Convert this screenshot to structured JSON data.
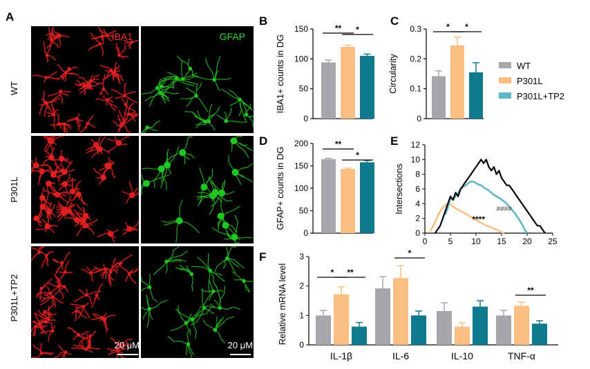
{
  "colors": {
    "wt": "#a7a6ab",
    "p301l": "#fbbf86",
    "tp2": "#0f7a8d",
    "tp2_line": "#5fb7c7",
    "red": "#e02020",
    "green": "#22c622",
    "black": "#000000"
  },
  "panels": {
    "A": {
      "label": "A",
      "channels": [
        "IBA1",
        "GFAP"
      ],
      "rows": [
        "WT",
        "P301L",
        "P301L+TP2"
      ],
      "scalebar": [
        "20 μM",
        "20 μM"
      ]
    }
  },
  "legend": [
    "WT",
    "P301L",
    "P301L+TP2"
  ],
  "chart_data": [
    {
      "panel": "B",
      "type": "bar",
      "categories": [
        "WT",
        "P301L",
        "P301L+TP2"
      ],
      "values": [
        94,
        120,
        105
      ],
      "errors": [
        4,
        3,
        3
      ],
      "ylabel": "IBA1+ counts in DG",
      "ylim": [
        0,
        150
      ],
      "yticks": [
        "0",
        "50",
        "100",
        "150"
      ],
      "sig": [
        {
          "text": "**",
          "from": 0,
          "to": 1
        },
        {
          "text": "*",
          "from": 1,
          "to": 2
        }
      ]
    },
    {
      "panel": "C",
      "type": "bar",
      "categories": [
        "WT",
        "P301L",
        "P301L+TP2"
      ],
      "values": [
        0.142,
        0.245,
        0.155
      ],
      "errors": [
        0.018,
        0.028,
        0.032
      ],
      "ylabel": "Circularity",
      "ylim": [
        0,
        0.3
      ],
      "yticks": [
        "0",
        "0.1",
        "0.2",
        "0.3"
      ],
      "sig": [
        {
          "text": "*",
          "from": 0,
          "to": 1
        },
        {
          "text": "*",
          "from": 1,
          "to": 2
        }
      ]
    },
    {
      "panel": "D",
      "type": "bar",
      "categories": [
        "WT",
        "P301L",
        "P301L+TP2"
      ],
      "values": [
        165,
        143,
        158
      ],
      "errors": [
        2,
        2,
        4
      ],
      "ylabel": "GFAP+ counts in DG",
      "ylim": [
        0,
        200
      ],
      "yticks": [
        "0",
        "50",
        "100",
        "150",
        "200"
      ],
      "sig": [
        {
          "text": "**",
          "from": 0,
          "to": 1
        },
        {
          "text": "*",
          "from": 1,
          "to": 2
        }
      ]
    },
    {
      "panel": "E",
      "type": "line",
      "ylabel": "Intersections",
      "xlim": [
        0,
        25
      ],
      "ylim": [
        0,
        12
      ],
      "xticks": [
        "0",
        "5",
        "10",
        "15",
        "20",
        "25"
      ],
      "yticks": [
        "0",
        "2",
        "4",
        "6",
        "8",
        "10",
        "12"
      ],
      "series": [
        {
          "color": "black",
          "x": [
            2,
            2.5,
            3,
            3.5,
            4,
            4.5,
            5,
            5.5,
            6,
            6.5,
            7,
            7.5,
            8,
            8.5,
            9,
            9.5,
            10,
            10.5,
            11,
            11.5,
            12,
            12.5,
            13,
            13.5,
            14,
            14.5,
            15,
            15.5,
            16,
            16.5,
            17,
            17.5,
            18,
            18.5,
            19,
            19.5,
            20,
            20.5,
            21,
            21.5,
            22,
            22.5,
            23,
            23.5
          ],
          "y": [
            0,
            0.5,
            1,
            2,
            3,
            4,
            5,
            4.5,
            5.5,
            5,
            6,
            6.5,
            7,
            7.5,
            8,
            8.5,
            9,
            9.5,
            10,
            9.5,
            10,
            9,
            8.5,
            9,
            8,
            8.5,
            7.5,
            7,
            6.5,
            6.5,
            6,
            5.5,
            5,
            4.5,
            4,
            3.5,
            3,
            2.5,
            2,
            1.5,
            1,
            1,
            0.5,
            0
          ]
        },
        {
          "color": "tp2_line",
          "x": [
            4,
            4.5,
            5,
            5.5,
            6,
            6.5,
            7,
            7.5,
            8,
            8.5,
            9,
            9.5,
            10,
            10.5,
            11,
            11.5,
            12,
            12.5,
            13,
            13.5,
            14,
            14.5,
            15,
            15.5,
            16,
            16.5,
            17,
            17.5,
            18,
            18.5,
            19,
            19.5,
            20
          ],
          "y": [
            2.5,
            3.5,
            4.8,
            4.6,
            5,
            5.5,
            6,
            6.3,
            6.5,
            6.8,
            7,
            7,
            6.8,
            6.6,
            6.5,
            6.2,
            6,
            5.8,
            5.5,
            5.2,
            5,
            4.8,
            4.6,
            4.3,
            4,
            3.6,
            3.2,
            2.8,
            2.3,
            1.8,
            1.2,
            0.5,
            0
          ]
        },
        {
          "color": "p301l",
          "x": [
            1,
            1.5,
            2,
            2.5,
            3,
            3.5,
            4,
            4.5,
            5,
            5.5,
            6,
            6.5,
            7,
            7.5,
            8,
            8.5,
            9,
            9.5,
            10,
            10.5,
            11,
            11.5,
            12,
            12.5,
            13,
            13.5,
            14,
            14.5,
            15,
            15.5
          ],
          "y": [
            0.2,
            0.8,
            1.5,
            2.3,
            3,
            3.5,
            3.8,
            3.9,
            3.9,
            3.6,
            3.4,
            3.2,
            3,
            2.8,
            2.6,
            2.4,
            2.2,
            2,
            1.8,
            1.6,
            1.4,
            1.2,
            1,
            0.9,
            0.8,
            0.6,
            0.5,
            0.3,
            0.1,
            0
          ]
        }
      ],
      "annotations": [
        "****",
        "####"
      ]
    },
    {
      "panel": "F",
      "type": "bar",
      "categories": [
        "IL-1β",
        "IL-6",
        "IL-10",
        "TNF-α"
      ],
      "series": [
        {
          "name": "WT",
          "values": [
            1.0,
            1.92,
            1.15,
            1.0
          ],
          "errors": [
            0.17,
            0.4,
            0.28,
            0.17
          ]
        },
        {
          "name": "P301L",
          "values": [
            1.72,
            2.27,
            0.62,
            1.33
          ],
          "errors": [
            0.25,
            0.42,
            0.13,
            0.12
          ]
        },
        {
          "name": "P301L+TP2",
          "values": [
            0.62,
            1.0,
            1.3,
            0.72
          ],
          "errors": [
            0.14,
            0.15,
            0.2,
            0.1
          ]
        }
      ],
      "ylabel": "Relative mRNA level",
      "ylim": [
        0,
        3
      ],
      "yticks": [
        "0",
        "1",
        "2",
        "3"
      ],
      "sig": [
        {
          "text": "*",
          "group": 0,
          "from": 0,
          "to": 1
        },
        {
          "text": "**",
          "group": 0,
          "from": 1,
          "to": 2
        },
        {
          "text": "*",
          "group": 1,
          "from": 1,
          "to": 2
        },
        {
          "text": "**",
          "group": 3,
          "from": 1,
          "to": 2
        }
      ]
    }
  ]
}
